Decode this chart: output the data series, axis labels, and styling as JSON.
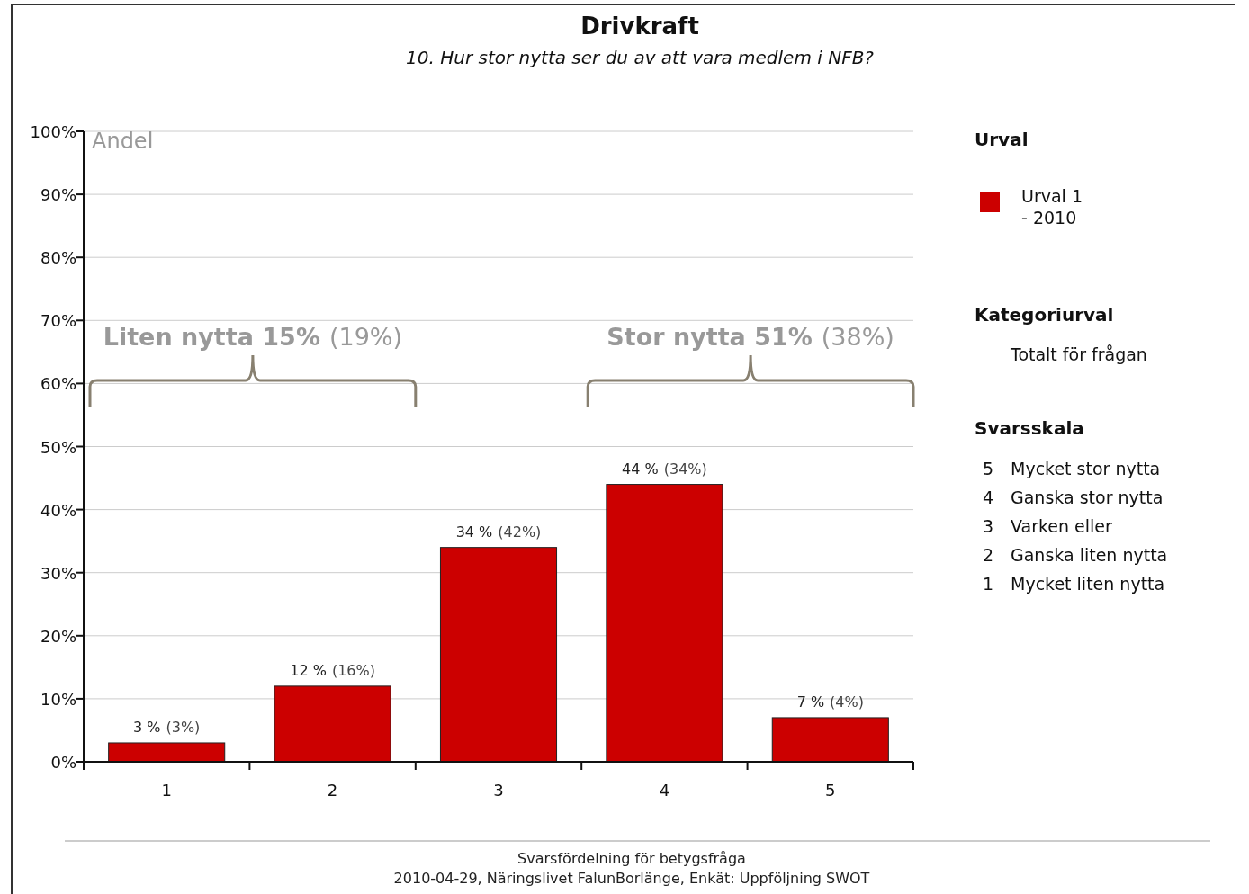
{
  "chart_data": {
    "type": "bar",
    "title": "Drivkraft",
    "subtitle": "10. Hur stor nytta ser du av att vara medlem i NFB?",
    "ylabel": "Andel",
    "categories": [
      "1",
      "2",
      "3",
      "4",
      "5"
    ],
    "series": [
      {
        "name": "Urval 1 - 2010",
        "color": "#cc0000",
        "values": [
          3,
          12,
          34,
          44,
          7
        ],
        "value_labels": [
          "3 % (3%)",
          "12 % (16%)",
          "34 % (42%)",
          "44 % (34%)",
          "7 % (4%)"
        ]
      }
    ],
    "legend_title": "Urval",
    "legend": "right",
    "ylim": [
      0,
      100
    ],
    "yticks": [
      {
        "value": 0,
        "label": "0%"
      },
      {
        "value": 10,
        "label": "10%"
      },
      {
        "value": 20,
        "label": "20%"
      },
      {
        "value": 30,
        "label": "30%"
      },
      {
        "value": 40,
        "label": "40%"
      },
      {
        "value": 50,
        "label": "50%"
      },
      {
        "value": 60,
        "label": "60%"
      },
      {
        "value": 70,
        "label": "70%"
      },
      {
        "value": 80,
        "label": "80%"
      },
      {
        "value": 90,
        "label": "90%"
      },
      {
        "value": 100,
        "label": "100%"
      }
    ],
    "grid": "y",
    "annotations": [
      "Liten nytta 15% (19%)",
      "Stor nytta 51% (38%)",
      "Kategoriurval",
      "Totalt för frågan",
      "Svarsskala",
      "5 Mycket stor nytta",
      "4 Ganska stor nytta",
      "3 Varken eller",
      "2 Ganska liten nytta",
      "1 Mycket liten nytta",
      "Svarsfördelning för betygsfråga",
      "2010-04-29, Näringslivet FalunBorlänge, Enkät: Uppföljning SWOT"
    ]
  }
}
